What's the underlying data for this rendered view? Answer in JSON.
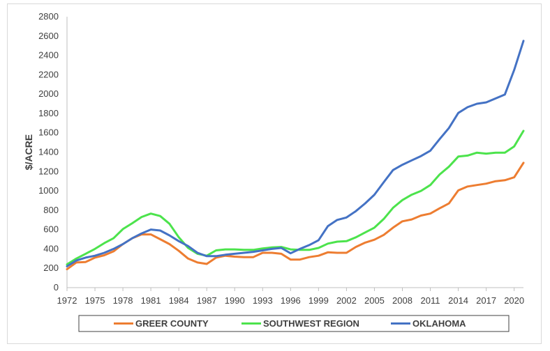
{
  "chart_data": {
    "type": "line",
    "title": "",
    "xlabel": "",
    "ylabel": "$/ACRE",
    "ylim": [
      0,
      2800
    ],
    "xlim": [
      1972,
      2021
    ],
    "y_ticks": [
      0,
      200,
      400,
      600,
      800,
      1000,
      1200,
      1400,
      1600,
      1800,
      2000,
      2200,
      2400,
      2600,
      2800
    ],
    "x_ticks": [
      1972,
      1975,
      1978,
      1981,
      1984,
      1987,
      1990,
      1993,
      1996,
      1999,
      2002,
      2005,
      2008,
      2011,
      2014,
      2017,
      2020
    ],
    "grid": false,
    "legend_position": "bottom",
    "x": [
      1972,
      1973,
      1974,
      1975,
      1976,
      1977,
      1978,
      1979,
      1980,
      1981,
      1982,
      1983,
      1984,
      1985,
      1986,
      1987,
      1988,
      1989,
      1990,
      1991,
      1992,
      1993,
      1994,
      1995,
      1996,
      1997,
      1998,
      1999,
      2000,
      2001,
      2002,
      2003,
      2004,
      2005,
      2006,
      2007,
      2008,
      2009,
      2010,
      2011,
      2012,
      2013,
      2014,
      2015,
      2016,
      2017,
      2018,
      2019,
      2020,
      2021
    ],
    "series": [
      {
        "name": "GREER COUNTY",
        "color": "#ED7D31",
        "values": [
          190,
          260,
          265,
          310,
          335,
          375,
          450,
          510,
          550,
          550,
          500,
          450,
          380,
          300,
          260,
          245,
          310,
          330,
          320,
          315,
          315,
          360,
          360,
          350,
          290,
          290,
          315,
          330,
          365,
          360,
          360,
          420,
          465,
          495,
          545,
          620,
          685,
          705,
          745,
          765,
          820,
          870,
          1005,
          1045,
          1060,
          1075,
          1100,
          1110,
          1140,
          1290
        ]
      },
      {
        "name": "SOUTHWEST REGION",
        "color": "#4CE34C",
        "values": [
          240,
          300,
          350,
          400,
          460,
          510,
          605,
          665,
          730,
          765,
          740,
          660,
          520,
          410,
          350,
          330,
          385,
          395,
          395,
          390,
          390,
          405,
          415,
          420,
          395,
          390,
          390,
          410,
          455,
          475,
          480,
          520,
          570,
          620,
          710,
          825,
          905,
          960,
          1000,
          1060,
          1170,
          1250,
          1355,
          1365,
          1395,
          1385,
          1395,
          1395,
          1460,
          1620
        ]
      },
      {
        "name": "OKLAHOMA",
        "color": "#4472C4",
        "values": [
          220,
          280,
          310,
          330,
          360,
          400,
          450,
          510,
          560,
          600,
          590,
          540,
          480,
          430,
          360,
          325,
          325,
          340,
          350,
          360,
          370,
          385,
          400,
          410,
          355,
          400,
          440,
          490,
          635,
          700,
          725,
          790,
          870,
          960,
          1090,
          1215,
          1270,
          1315,
          1360,
          1415,
          1535,
          1650,
          1805,
          1865,
          1900,
          1915,
          1955,
          1995,
          2250,
          2550
        ]
      }
    ]
  }
}
